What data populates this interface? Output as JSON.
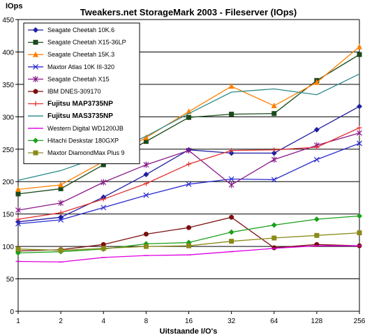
{
  "chart_data": {
    "type": "line",
    "title": "Tweakers.net StorageMark 2003 - Fileserver (IOps)",
    "ylabel": "IOps",
    "xlabel": "Uitstaande I/O's",
    "categories": [
      "1",
      "2",
      "4",
      "8",
      "16",
      "32",
      "64",
      "128",
      "256"
    ],
    "ylim": [
      0,
      450
    ],
    "yticks": [
      0,
      50,
      100,
      150,
      200,
      250,
      300,
      350,
      400,
      450
    ],
    "grid": "horizontal",
    "legend_position": "top-left",
    "series": [
      {
        "name": "Seagate Cheetah 10K.6",
        "color": "#1f1fa0",
        "marker": "diamond",
        "bold": false,
        "values": [
          138,
          145,
          176,
          211,
          249,
          244,
          244,
          280,
          316
        ]
      },
      {
        "name": "Seagate Cheetah X15-36LP",
        "color": "#1a4a1a",
        "marker": "square",
        "bold": false,
        "values": [
          181,
          189,
          226,
          262,
          299,
          304,
          305,
          356,
          396
        ]
      },
      {
        "name": "Seagate Cheetah 15K.3",
        "color": "#ff7f00",
        "marker": "triangle",
        "bold": false,
        "values": [
          188,
          195,
          231,
          268,
          308,
          347,
          317,
          353,
          408
        ]
      },
      {
        "name": "Maxtor Atlas 10K III-320",
        "color": "#2a2ad0",
        "marker": "x",
        "bold": false,
        "values": [
          135,
          141,
          160,
          179,
          196,
          204,
          203,
          234,
          259
        ]
      },
      {
        "name": "Seagate Cheetah X15",
        "color": "#8a1a8a",
        "marker": "star",
        "bold": false,
        "values": [
          156,
          167,
          199,
          226,
          248,
          195,
          234,
          256,
          275
        ]
      },
      {
        "name": "IBM DNES-309170",
        "color": "#7a0f0f",
        "marker": "circle",
        "bold": false,
        "values": [
          93,
          95,
          103,
          119,
          129,
          145,
          98,
          103,
          101
        ]
      },
      {
        "name": "Fujitsu MAP3735NP",
        "color": "#e03030",
        "marker": "plus",
        "bold": true,
        "values": [
          142,
          152,
          173,
          197,
          227,
          248,
          249,
          253,
          283
        ]
      },
      {
        "name": "Fujitsu MAS3735NP",
        "color": "#2a8a8a",
        "marker": "none",
        "bold": true,
        "values": [
          202,
          217,
          240,
          270,
          305,
          338,
          343,
          334,
          366
        ]
      },
      {
        "name": "Western Digital WD1200JB",
        "color": "#e000e0",
        "marker": "dash",
        "bold": false,
        "values": [
          77,
          76,
          83,
          86,
          87,
          92,
          97,
          101,
          101
        ]
      },
      {
        "name": "Hitachi Deskstar 180GXP",
        "color": "#1aa01a",
        "marker": "diamond",
        "bold": false,
        "values": [
          90,
          92,
          96,
          104,
          106,
          122,
          133,
          142,
          147
        ]
      },
      {
        "name": "Maxtor DiamondMax Plus 9",
        "color": "#8a8a1a",
        "marker": "square",
        "bold": false,
        "values": [
          96,
          94,
          97,
          100,
          101,
          108,
          113,
          117,
          121
        ]
      }
    ]
  }
}
